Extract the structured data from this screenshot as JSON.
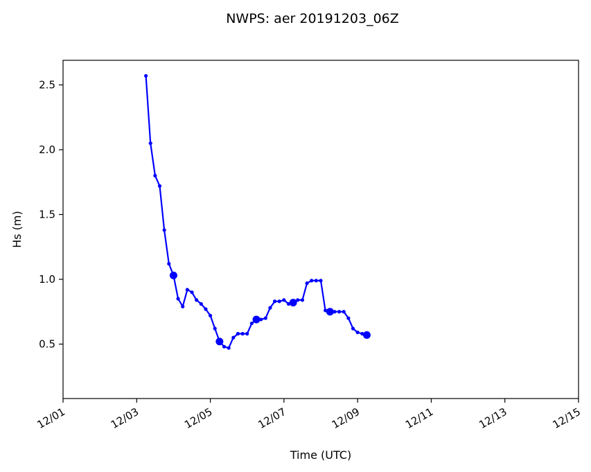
{
  "chart_data": {
    "type": "line",
    "title": "NWPS: aer 20191203_06Z",
    "xlabel": "Time (UTC)",
    "ylabel": "Hs (m)",
    "xlim": [
      "2019-12-01T00:00",
      "2019-12-15T00:00"
    ],
    "ylim": [
      0.08,
      2.69
    ],
    "x_tick_labels": [
      "12/01",
      "12/03",
      "12/05",
      "12/07",
      "12/09",
      "12/11",
      "12/13",
      "12/15"
    ],
    "y_ticks": [
      0.5,
      1.0,
      1.5,
      2.0,
      2.5
    ],
    "y_tick_labels": [
      "0.5",
      "1.0",
      "1.5",
      "2.0",
      "2.5"
    ],
    "series_color": "#0000ff",
    "grid": false,
    "series": [
      {
        "x": [
          "2019-12-03T06:00",
          "2019-12-03T09:00",
          "2019-12-03T12:00",
          "2019-12-03T15:00",
          "2019-12-03T18:00",
          "2019-12-03T21:00",
          "2019-12-04T00:00",
          "2019-12-04T03:00",
          "2019-12-04T06:00",
          "2019-12-04T09:00",
          "2019-12-04T12:00",
          "2019-12-04T15:00",
          "2019-12-04T18:00",
          "2019-12-04T21:00",
          "2019-12-05T00:00",
          "2019-12-05T03:00",
          "2019-12-05T06:00",
          "2019-12-05T09:00",
          "2019-12-05T12:00",
          "2019-12-05T15:00",
          "2019-12-05T18:00",
          "2019-12-05T21:00",
          "2019-12-06T00:00",
          "2019-12-06T03:00",
          "2019-12-06T06:00",
          "2019-12-06T09:00",
          "2019-12-06T12:00",
          "2019-12-06T15:00",
          "2019-12-06T18:00",
          "2019-12-06T21:00",
          "2019-12-07T00:00",
          "2019-12-07T03:00",
          "2019-12-07T06:00",
          "2019-12-07T09:00",
          "2019-12-07T12:00",
          "2019-12-07T15:00",
          "2019-12-07T18:00",
          "2019-12-07T21:00",
          "2019-12-08T00:00",
          "2019-12-08T03:00",
          "2019-12-08T06:00",
          "2019-12-08T09:00",
          "2019-12-08T12:00",
          "2019-12-08T15:00",
          "2019-12-08T18:00",
          "2019-12-08T21:00",
          "2019-12-09T00:00",
          "2019-12-09T03:00",
          "2019-12-09T06:00"
        ],
        "values": [
          2.57,
          2.05,
          1.8,
          1.72,
          1.38,
          1.12,
          1.03,
          0.85,
          0.79,
          0.92,
          0.9,
          0.84,
          0.81,
          0.77,
          0.72,
          0.62,
          0.52,
          0.48,
          0.47,
          0.55,
          0.58,
          0.58,
          0.58,
          0.66,
          0.69,
          0.69,
          0.7,
          0.78,
          0.83,
          0.83,
          0.84,
          0.81,
          0.82,
          0.84,
          0.84,
          0.97,
          0.99,
          0.99,
          0.99,
          0.76,
          0.75,
          0.75,
          0.75,
          0.75,
          0.7,
          0.62,
          0.59,
          0.58,
          0.57
        ],
        "large_markers_x": [
          "2019-12-04T00:00",
          "2019-12-05T06:00",
          "2019-12-06T06:00",
          "2019-12-07T06:00",
          "2019-12-08T06:00",
          "2019-12-09T06:00"
        ]
      }
    ]
  }
}
